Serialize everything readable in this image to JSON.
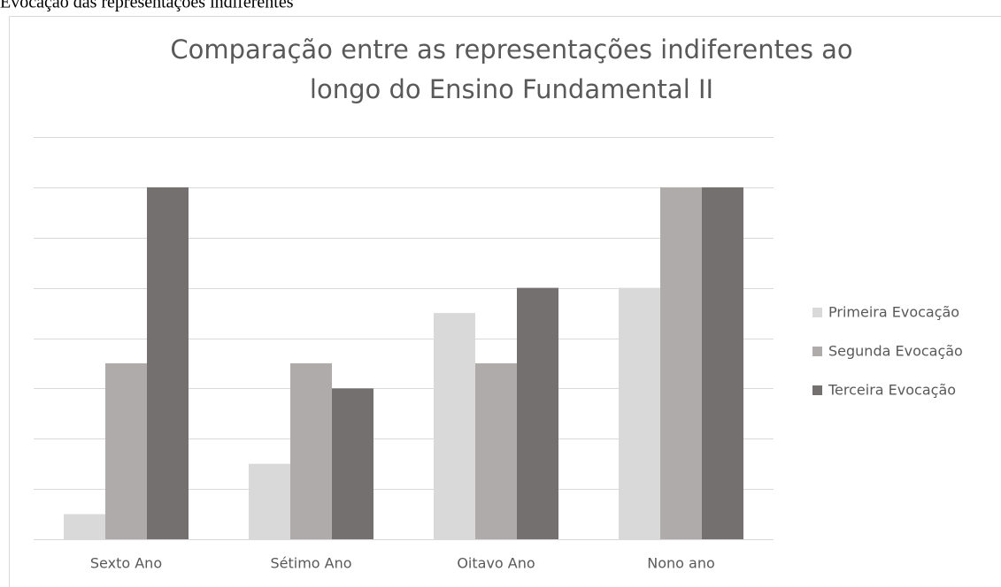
{
  "caption": "Evocação das representações indiferentes",
  "chart_data": {
    "type": "bar",
    "title": [
      "Comparação entre as representações indiferentes  ao",
      "longo do Ensino Fundamental II"
    ],
    "categories": [
      "Sexto Ano",
      "Sétimo Ano",
      "Oitavo Ano",
      "Nono ano"
    ],
    "series": [
      {
        "name": "Primeira Evocação",
        "color": "#d9d9d9",
        "values": [
          0.5,
          1.5,
          4.5,
          5
        ]
      },
      {
        "name": "Segunda Evocação",
        "color": "#afabab",
        "values": [
          3.5,
          3.5,
          3.5,
          7
        ]
      },
      {
        "name": "Terceira Evocação",
        "color": "#757070",
        "values": [
          7,
          3,
          5,
          7
        ]
      }
    ],
    "ylim": [
      0,
      8
    ],
    "yticks": [
      0,
      1,
      2,
      3,
      4,
      5,
      6,
      7,
      8
    ],
    "grid": true,
    "legend": "right"
  }
}
